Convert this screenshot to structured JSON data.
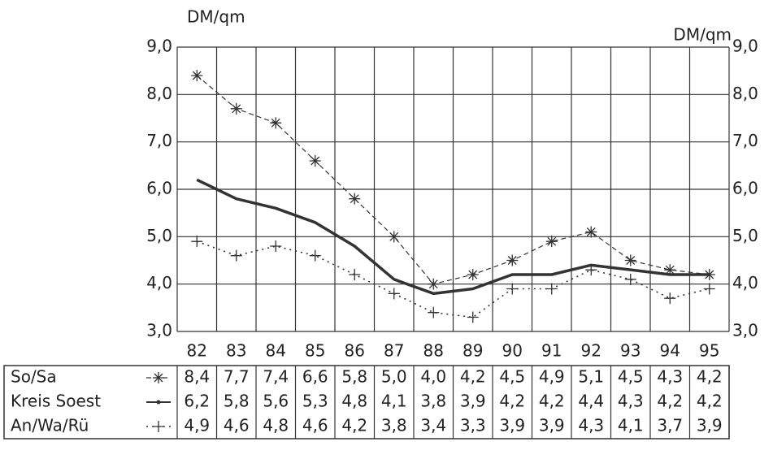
{
  "chart_data": {
    "type": "line",
    "y_label": "DM/qm",
    "y2_label": "DM/qm",
    "categories": [
      "82",
      "83",
      "84",
      "85",
      "86",
      "87",
      "88",
      "89",
      "90",
      "91",
      "92",
      "93",
      "94",
      "95"
    ],
    "ylim": [
      3,
      9
    ],
    "yticks": [
      {
        "value": 3,
        "label": "3,0"
      },
      {
        "value": 4,
        "label": "4,0"
      },
      {
        "value": 5,
        "label": "5,0"
      },
      {
        "value": 6,
        "label": "6,0"
      },
      {
        "value": 7,
        "label": "7,0"
      },
      {
        "value": 8,
        "label": "8,0"
      },
      {
        "value": 9,
        "label": "9,0"
      }
    ],
    "y2lim": [
      3,
      9
    ],
    "y2ticks": [
      {
        "value": 3,
        "label": "3,0"
      },
      {
        "value": 4,
        "label": "4,0"
      },
      {
        "value": 5,
        "label": "5,0"
      },
      {
        "value": 6,
        "label": "6,0"
      },
      {
        "value": 7,
        "label": "7,0"
      },
      {
        "value": 8,
        "label": "8,0"
      },
      {
        "value": 9,
        "label": "9,0"
      }
    ],
    "grid": true,
    "series": [
      {
        "name": "So/Sa",
        "color": "#333333",
        "style": "dashed",
        "marker": "asterisk",
        "values": [
          8.4,
          7.7,
          7.4,
          6.6,
          5.8,
          5.0,
          4.0,
          4.2,
          4.5,
          4.9,
          5.1,
          4.5,
          4.3,
          4.2
        ],
        "value_labels": [
          "8,4",
          "7,7",
          "7,4",
          "6,6",
          "5,8",
          "5,0",
          "4,0",
          "4,2",
          "4,5",
          "4,9",
          "5,1",
          "4,5",
          "4,3",
          "4,2"
        ]
      },
      {
        "name": "Kreis Soest",
        "color": "#333333",
        "style": "solid",
        "marker": "none",
        "values": [
          6.2,
          5.8,
          5.6,
          5.3,
          4.8,
          4.1,
          3.8,
          3.9,
          4.2,
          4.2,
          4.4,
          4.3,
          4.2,
          4.2
        ],
        "value_labels": [
          "6,2",
          "5,8",
          "5,6",
          "5,3",
          "4,8",
          "4,1",
          "3,8",
          "3,9",
          "4,2",
          "4,2",
          "4,4",
          "4,3",
          "4,2",
          "4,2"
        ]
      },
      {
        "name": "An/Wa/Rü",
        "color": "#333333",
        "style": "dotted",
        "marker": "plus",
        "values": [
          4.9,
          4.6,
          4.8,
          4.6,
          4.2,
          3.8,
          3.4,
          3.3,
          3.9,
          3.9,
          4.3,
          4.1,
          3.7,
          3.9
        ],
        "value_labels": [
          "4,9",
          "4,6",
          "4,8",
          "4,6",
          "4,2",
          "3,8",
          "3,4",
          "3,3",
          "3,9",
          "3,9",
          "4,3",
          "4,1",
          "3,7",
          "3,9"
        ]
      }
    ]
  }
}
